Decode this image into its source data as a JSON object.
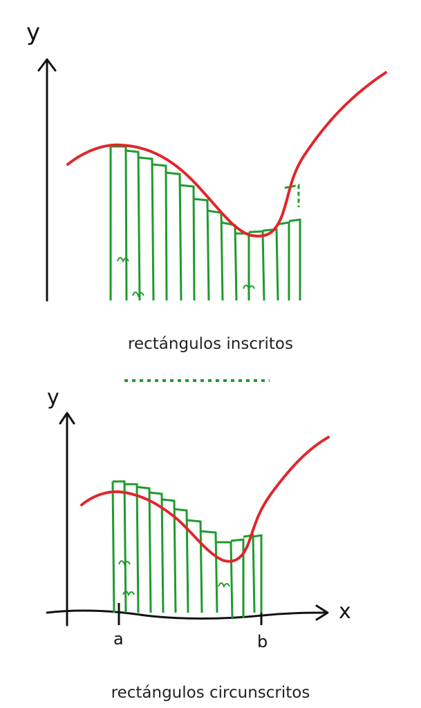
{
  "colors": {
    "curve": "#e0262a",
    "rect": "#1f9a2e",
    "axis": "#111111",
    "text": "#222222"
  },
  "top": {
    "axis_label_y": "y",
    "caption": "rectángulos inscritos"
  },
  "bottom": {
    "axis_label_y": "y",
    "axis_label_x": "x",
    "tick_a": "a",
    "tick_b": "b",
    "caption": "rectángulos circunscritos"
  }
}
